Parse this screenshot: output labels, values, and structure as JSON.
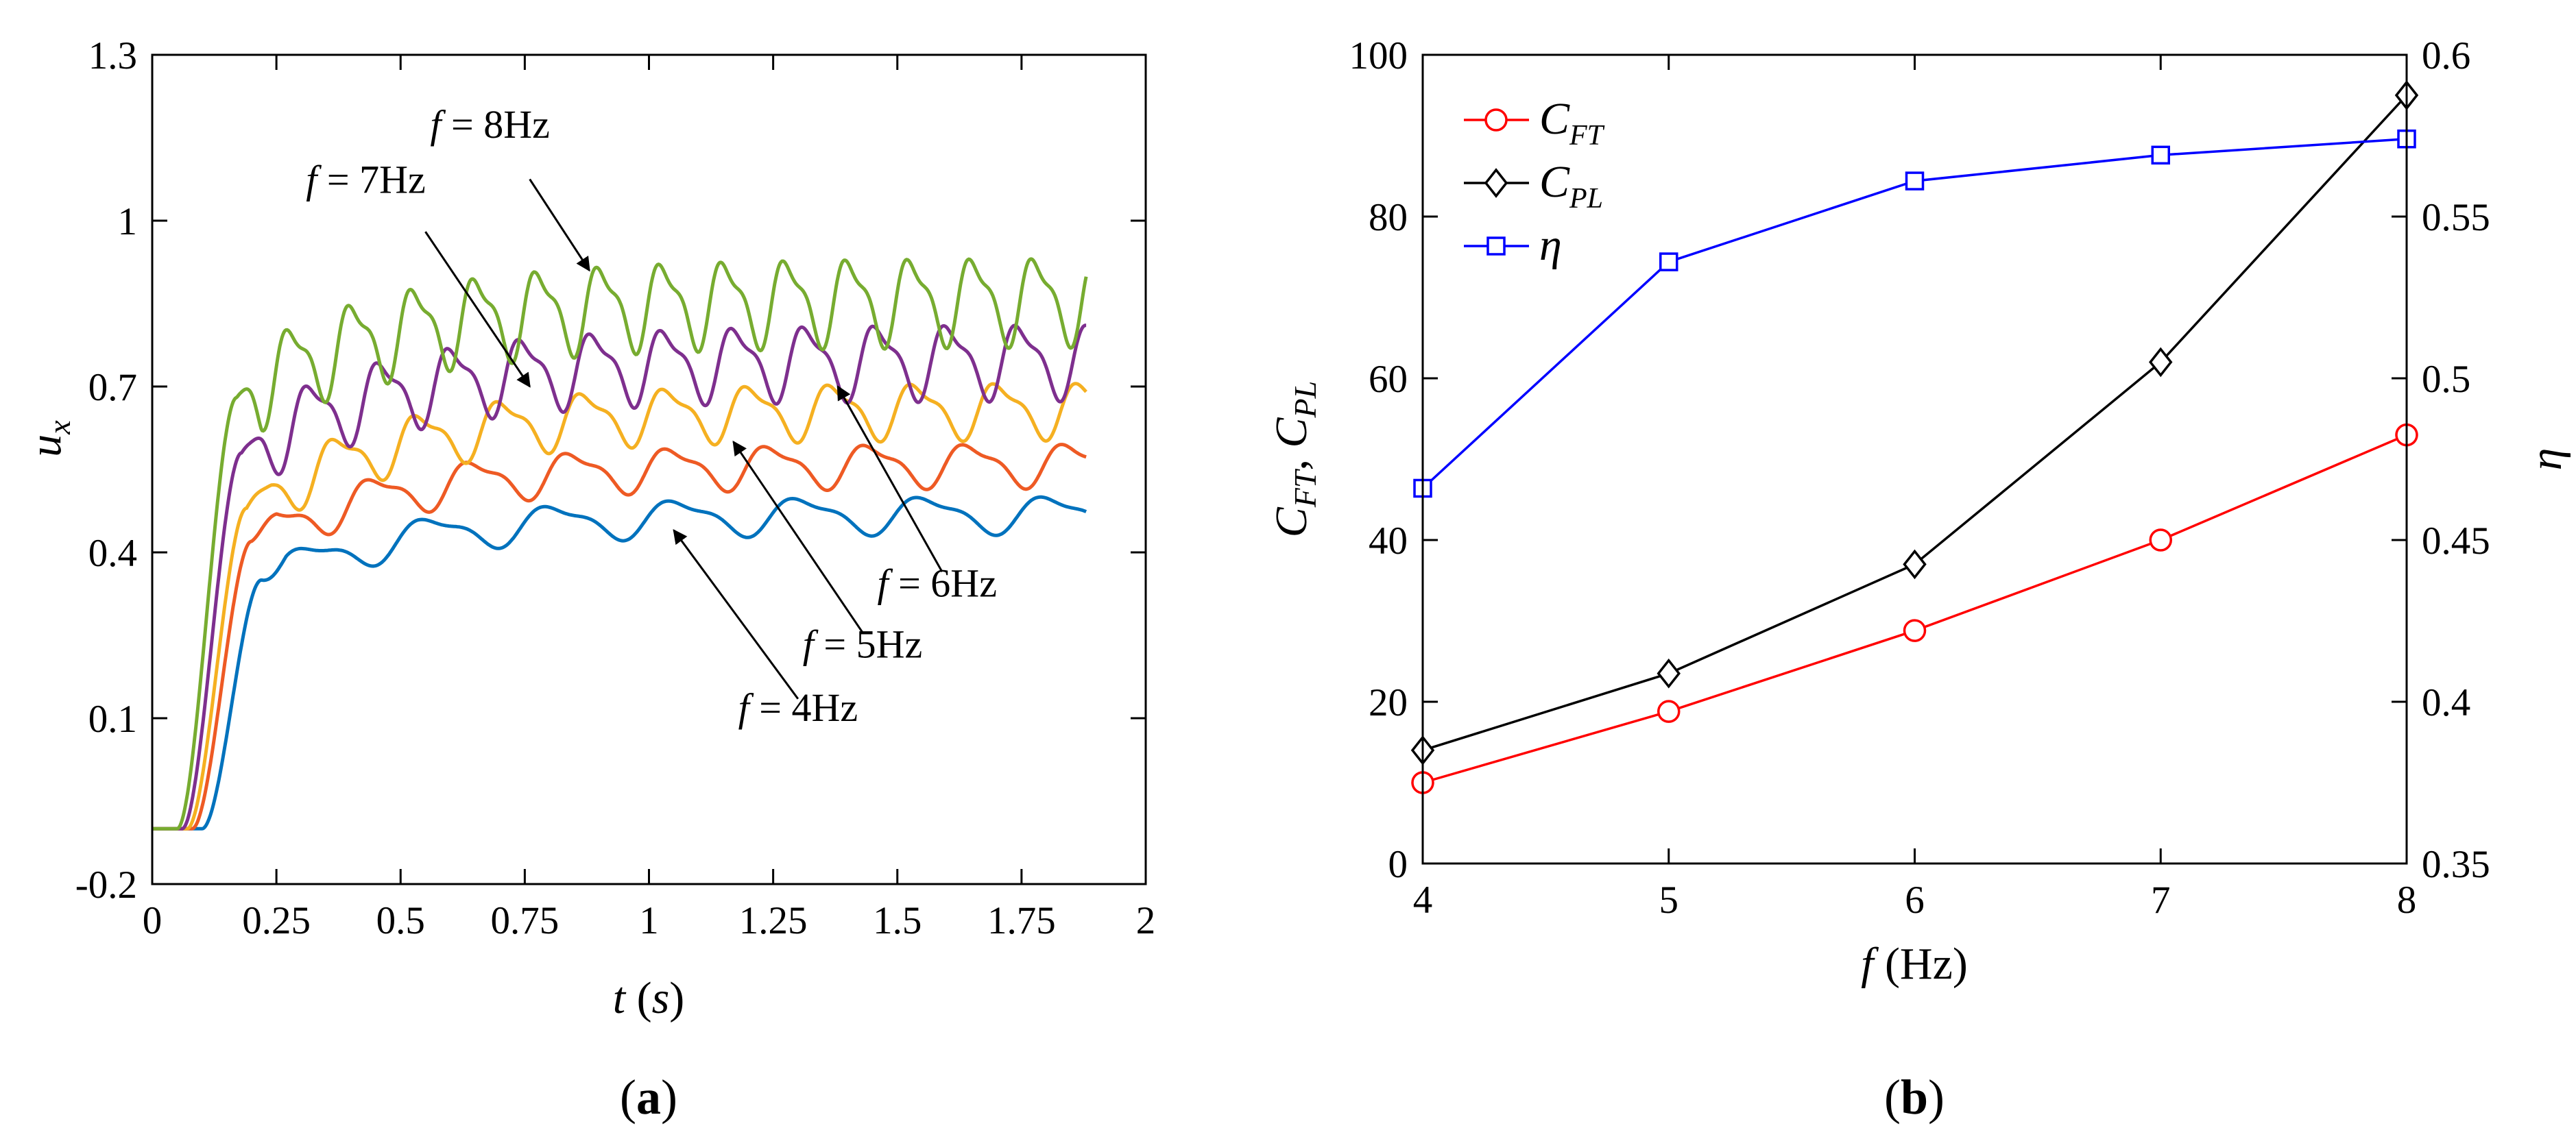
{
  "chart_data": [
    {
      "type": "line",
      "panel_label": "(a)",
      "xlabel": "t (s)",
      "xlabel_t": "t",
      "xlabel_s": "s",
      "ylabel_main": "u",
      "ylabel_sub": "x",
      "xlim": [
        0,
        2
      ],
      "ylim": [
        -0.2,
        1.3
      ],
      "xticks": [
        0,
        0.25,
        0.5,
        0.75,
        1,
        1.25,
        1.5,
        1.75,
        2
      ],
      "xtick_labels": [
        "0",
        "0.25",
        "0.5",
        "0.75",
        "1",
        "1.25",
        "1.5",
        "1.75",
        "2"
      ],
      "yticks": [
        -0.2,
        0.1,
        0.4,
        0.7,
        1,
        1.3
      ],
      "ytick_labels": [
        "-0.2",
        "0.1",
        "0.4",
        "0.7",
        "1",
        "1.3"
      ],
      "series": [
        {
          "name": "f = 4Hz",
          "label_f": "f",
          "label_rest": " = 4Hz",
          "freq": 4,
          "color": "#0072BD",
          "t_rise": 0.1,
          "base": 0.35,
          "approach": 0.47,
          "tau": 0.3,
          "amp": 0.03,
          "arrow_t": 1.05,
          "arrow_v": 0.44
        },
        {
          "name": "f = 5Hz",
          "label_f": "f",
          "label_rest": " = 5Hz",
          "freq": 5,
          "color": "#EE5A24",
          "t_rise": 0.08,
          "base": 0.42,
          "approach": 0.56,
          "tau": 0.3,
          "amp": 0.035,
          "arrow_t": 1.17,
          "arrow_v": 0.6
        },
        {
          "name": "f = 6Hz",
          "label_f": "f",
          "label_rest": " = 6Hz",
          "freq": 6,
          "color": "#F5B021",
          "t_rise": 0.07,
          "base": 0.48,
          "approach": 0.66,
          "tau": 0.3,
          "amp": 0.045,
          "arrow_t": 1.38,
          "arrow_v": 0.7
        },
        {
          "name": "f = 7Hz",
          "label_f": "f",
          "label_rest": " = 7Hz",
          "freq": 7,
          "color": "#7E2F8E",
          "t_rise": 0.06,
          "base": 0.58,
          "approach": 0.75,
          "tau": 0.3,
          "amp": 0.06,
          "arrow_t": 0.76,
          "arrow_v": 0.7
        },
        {
          "name": "f = 8Hz",
          "label_f": "f",
          "label_rest": " = 8Hz",
          "freq": 8,
          "color": "#77AC30",
          "t_rise": 0.05,
          "base": 0.68,
          "approach": 0.86,
          "tau": 0.3,
          "amp": 0.07,
          "arrow_t": 0.88,
          "arrow_v": 0.91
        }
      ]
    },
    {
      "type": "line",
      "panel_label": "(b)",
      "xlabel": "f (Hz)",
      "xlabel_f": "f",
      "xlabel_rest": " (Hz)",
      "ylabel_left": "C_FT, C_PL",
      "ylabel_right": "η",
      "x": [
        4,
        5,
        6,
        7,
        8
      ],
      "xlim": [
        4,
        8
      ],
      "ylim_left": [
        0,
        100
      ],
      "ylim_right": [
        0.35,
        0.6
      ],
      "xtick_labels": [
        "4",
        "5",
        "6",
        "7",
        "8"
      ],
      "ytick_labels_left": [
        "0",
        "20",
        "40",
        "60",
        "80",
        "100"
      ],
      "ytick_labels_right": [
        "0.35",
        "0.4",
        "0.45",
        "0.5",
        "0.55",
        "0.6"
      ],
      "series": [
        {
          "name": "C_FT",
          "main": "C",
          "sub": "FT",
          "axis": "left",
          "marker": "circle",
          "color": "#FF0000",
          "values": [
            10,
            18.8,
            28.8,
            40,
            53
          ]
        },
        {
          "name": "C_PL",
          "main": "C",
          "sub": "PL",
          "axis": "left",
          "marker": "diamond",
          "color": "#000000",
          "values": [
            14,
            23.5,
            37,
            62,
            95
          ]
        },
        {
          "name": "η",
          "main": "η",
          "sub": "",
          "axis": "right",
          "marker": "square",
          "color": "#0000FF",
          "values": [
            0.466,
            0.536,
            0.561,
            0.569,
            0.574
          ]
        }
      ]
    }
  ]
}
